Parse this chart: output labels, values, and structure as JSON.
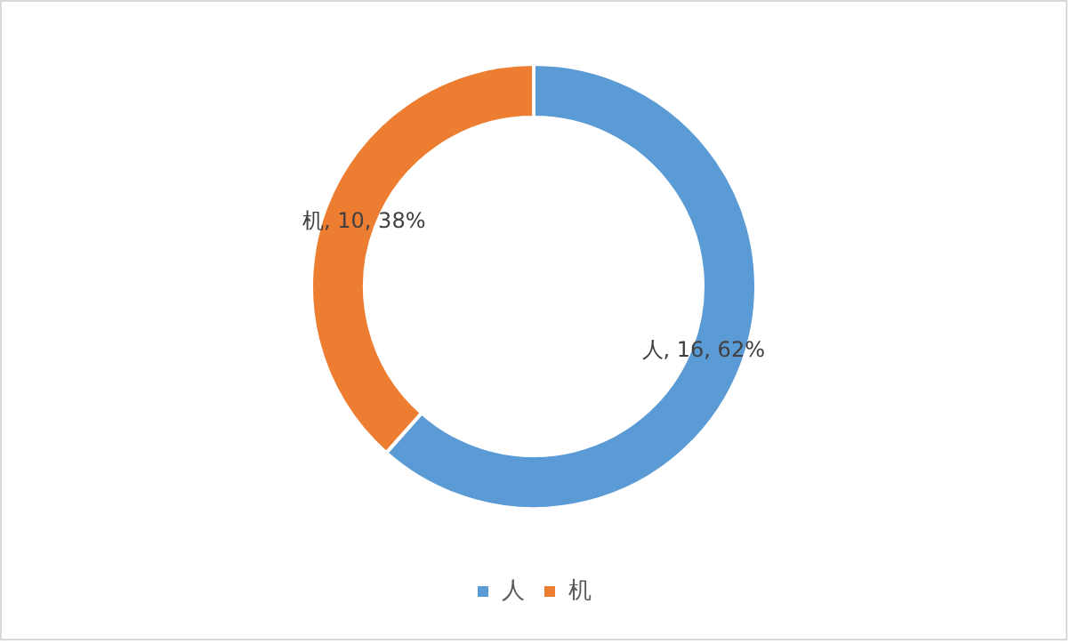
{
  "chart_data": {
    "type": "donut",
    "categories": [
      "人",
      "机"
    ],
    "values": [
      16,
      10
    ],
    "colors": [
      "#5b9bd5",
      "#ed7d31"
    ],
    "value_labels": [
      "人, 16, 62%",
      "机, 10, 38%"
    ],
    "legend": "bottom"
  }
}
